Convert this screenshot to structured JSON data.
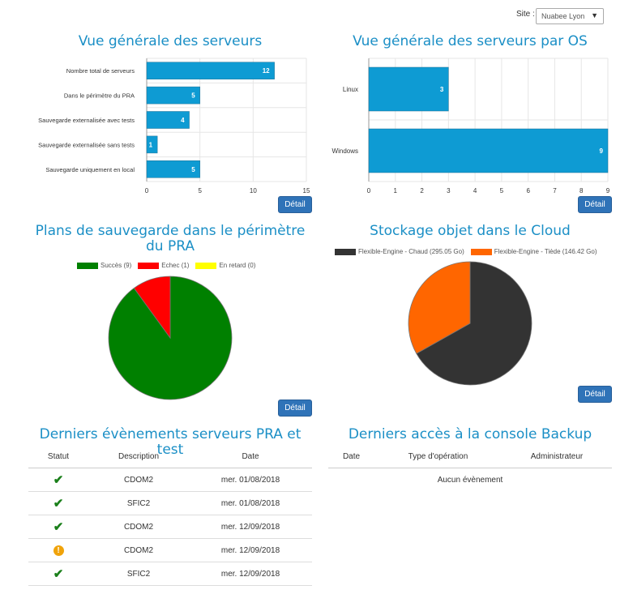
{
  "site": {
    "label": "Site :",
    "selected": "Nuabee Lyon"
  },
  "panels": {
    "servers": {
      "title": "Vue générale des serveurs",
      "detail": "Détail",
      "chart_data": {
        "type": "bar",
        "orientation": "horizontal",
        "categories": [
          "Nombre total de serveurs",
          "Dans le périmètre du PRA",
          "Sauvegarde externalisée avec tests",
          "Sauvegarde externalisée sans tests",
          "Sauvegarde uniquement en local"
        ],
        "values": [
          12,
          5,
          4,
          1,
          5
        ],
        "xlim": [
          0,
          15
        ],
        "xticks": [
          0,
          5,
          10,
          15
        ],
        "color": "#0e9bd3",
        "grid": true
      }
    },
    "os": {
      "title": "Vue générale des serveurs par OS",
      "detail": "Détail",
      "chart_data": {
        "type": "bar",
        "orientation": "horizontal",
        "categories": [
          "Linux",
          "Windows"
        ],
        "values": [
          3,
          9
        ],
        "xlim": [
          0,
          9
        ],
        "xticks": [
          0,
          1,
          2,
          3,
          4,
          5,
          6,
          7,
          8,
          9
        ],
        "color": "#0e9bd3",
        "grid": true
      }
    },
    "plans": {
      "title": "Plans de sauvegarde dans le périmètre du PRA",
      "detail": "Détail",
      "chart_data": {
        "type": "pie",
        "legend_position": "top",
        "series": [
          {
            "name": "Succès (9)",
            "value": 9,
            "color": "#008000"
          },
          {
            "name": "Echec (1)",
            "value": 1,
            "color": "#ff0000"
          },
          {
            "name": "En retard (0)",
            "value": 0,
            "color": "#ffff00"
          }
        ]
      }
    },
    "storage": {
      "title": "Stockage objet dans le Cloud",
      "detail": "Détail",
      "chart_data": {
        "type": "pie",
        "legend_position": "top",
        "series": [
          {
            "name": "Flexible-Engine - Chaud (295.05 Go)",
            "value": 295.05,
            "color": "#333333"
          },
          {
            "name": "Flexible-Engine - Tiède (146.42 Go)",
            "value": 146.42,
            "color": "#ff6600"
          }
        ]
      }
    },
    "events": {
      "title": "Derniers évènements serveurs PRA et test",
      "columns": [
        "Statut",
        "Description",
        "Date"
      ],
      "rows": [
        {
          "status": "ok",
          "description": "CDOM2",
          "date": "mer. 01/08/2018"
        },
        {
          "status": "ok",
          "description": "SFIC2",
          "date": "mer. 01/08/2018"
        },
        {
          "status": "ok",
          "description": "CDOM2",
          "date": "mer. 12/09/2018"
        },
        {
          "status": "warning",
          "description": "CDOM2",
          "date": "mer. 12/09/2018"
        },
        {
          "status": "ok",
          "description": "SFIC2",
          "date": "mer. 12/09/2018"
        }
      ]
    },
    "access": {
      "title": "Derniers accès à la console Backup",
      "columns": [
        "Date",
        "Type d'opération",
        "Administrateur"
      ],
      "empty": "Aucun évènement"
    }
  },
  "colors": {
    "accent": "#1b8fc6",
    "button": "#2f73b8",
    "ok": "#1a7f1a",
    "warning": "#f0a30a"
  }
}
